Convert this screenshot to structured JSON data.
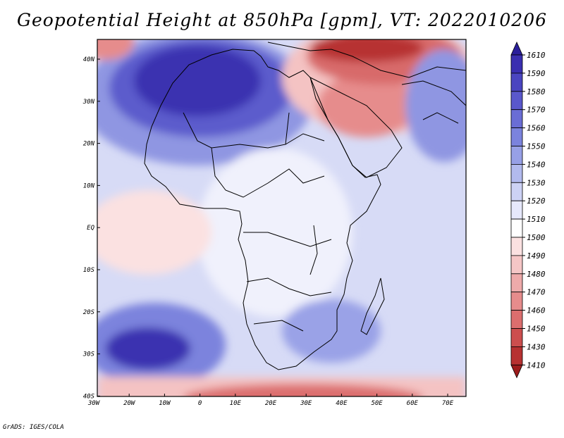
{
  "title": "Geopotential Height at 850hPa [gpm], VT: 2022010206",
  "footer": "GrADS: IGES/COLA",
  "map": {
    "lon_labels": [
      "30W",
      "20W",
      "10W",
      "0",
      "10E",
      "20E",
      "30E",
      "40E",
      "50E",
      "60E",
      "70E"
    ],
    "lat_labels": [
      "40N",
      "30N",
      "20N",
      "10N",
      "EQ",
      "10S",
      "20S",
      "30S",
      "40S"
    ]
  },
  "legend": {
    "levels": [
      "1610",
      "1590",
      "1580",
      "1570",
      "1560",
      "1550",
      "1540",
      "1530",
      "1520",
      "1510",
      "1500",
      "1490",
      "1480",
      "1470",
      "1460",
      "1450",
      "1430",
      "1410"
    ],
    "colors": [
      "#2a1f9a",
      "#3a2fb0",
      "#4a45c0",
      "#5a58cc",
      "#6a6dd5",
      "#7b83dd",
      "#97a0e6",
      "#b2baee",
      "#cdd2f5",
      "#e6e8fb",
      "#ffffff",
      "#fbe1e1",
      "#f5c6c6",
      "#eeaaaa",
      "#e68c8c",
      "#dc6e6e",
      "#cc4e4e",
      "#b73131",
      "#9c1c1c"
    ]
  }
}
